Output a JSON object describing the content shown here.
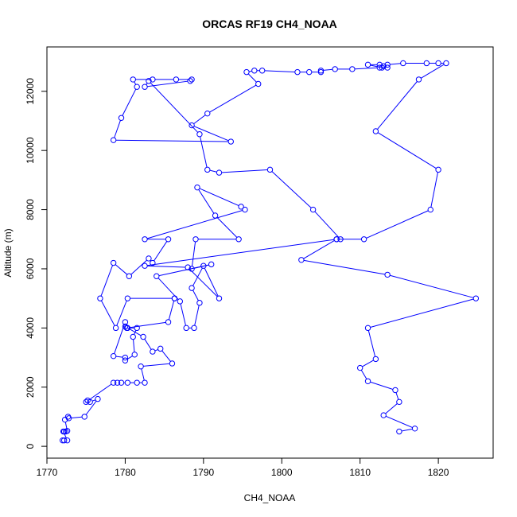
{
  "chart_data": {
    "type": "line",
    "title": "ORCAS RF19 CH4_NOAA",
    "xlabel": "CH4_NOAA",
    "ylabel": "Altitude (m)",
    "xlim": [
      1770,
      1827
    ],
    "ylim": [
      -400,
      13500
    ],
    "xticks": [
      1770,
      1780,
      1790,
      1800,
      1810,
      1820
    ],
    "yticks": [
      0,
      2000,
      4000,
      6000,
      8000,
      10000,
      12000
    ],
    "grid": false,
    "legend": "none",
    "markers": "open-circle",
    "color": "#0000ff",
    "series": [
      {
        "points": [
          [
            1772.0,
            200
          ],
          [
            1772.2,
            200
          ],
          [
            1772.6,
            200
          ],
          [
            1772.1,
            500
          ],
          [
            1772.4,
            500
          ],
          [
            1772.2,
            500
          ],
          [
            1772.6,
            520
          ],
          [
            1772.3,
            900
          ],
          [
            1772.7,
            1000
          ],
          [
            1772.8,
            950
          ],
          [
            1774.8,
            1000
          ],
          [
            1776.5,
            1600
          ],
          [
            1775.5,
            1500
          ],
          [
            1775.2,
            1550
          ],
          [
            1775.0,
            1500
          ],
          [
            1778.5,
            2150
          ],
          [
            1779.0,
            2150
          ],
          [
            1779.5,
            2150
          ],
          [
            1780.3,
            2150
          ],
          [
            1781.5,
            2150
          ],
          [
            1782.5,
            2150
          ],
          [
            1782.0,
            2700
          ],
          [
            1786.0,
            2800
          ],
          [
            1784.5,
            3300
          ],
          [
            1783.5,
            3200
          ],
          [
            1782.3,
            3700
          ],
          [
            1780.0,
            4050
          ],
          [
            1780.3,
            4000
          ],
          [
            1781.5,
            4000
          ],
          [
            1781.0,
            3700
          ],
          [
            1781.2,
            3100
          ],
          [
            1780.0,
            2900
          ],
          [
            1780.0,
            3000
          ],
          [
            1778.5,
            3050
          ],
          [
            1780.0,
            4200
          ],
          [
            1780.2,
            4000
          ],
          [
            1785.5,
            4200
          ],
          [
            1786.3,
            5000
          ],
          [
            1786.3,
            5000
          ],
          [
            1780.3,
            5000
          ],
          [
            1778.8,
            4000
          ],
          [
            1776.8,
            5000
          ],
          [
            1778.5,
            6200
          ],
          [
            1780.5,
            5750
          ],
          [
            1783.0,
            6350
          ],
          [
            1783.5,
            6200
          ],
          [
            1785.5,
            7000
          ],
          [
            1782.5,
            7000
          ],
          [
            1795.3,
            8000
          ],
          [
            1794.8,
            8100
          ],
          [
            1789.2,
            8750
          ],
          [
            1791.5,
            7800
          ],
          [
            1794.5,
            7000
          ],
          [
            1789.0,
            7000
          ],
          [
            1788.5,
            6000
          ],
          [
            1791.0,
            6150
          ],
          [
            1784.0,
            5750
          ],
          [
            1787.0,
            4900
          ],
          [
            1787.8,
            4000
          ],
          [
            1788.8,
            4000
          ],
          [
            1789.5,
            4850
          ],
          [
            1788.5,
            5350
          ],
          [
            1790.0,
            6100
          ],
          [
            1792.0,
            5000
          ],
          [
            1788.0,
            6050
          ],
          [
            1782.5,
            6100
          ],
          [
            1807.0,
            7000
          ],
          [
            1810.5,
            7000
          ],
          [
            1819.0,
            8000
          ],
          [
            1820.0,
            9350
          ],
          [
            1812.0,
            10650
          ],
          [
            1817.5,
            12400
          ],
          [
            1821.0,
            12950
          ],
          [
            1820.0,
            12950
          ],
          [
            1818.5,
            12950
          ],
          [
            1815.5,
            12950
          ],
          [
            1813.5,
            12900
          ],
          [
            1813.0,
            12850
          ],
          [
            1812.5,
            12900
          ],
          [
            1811.0,
            12900
          ],
          [
            1812.8,
            12800
          ],
          [
            1813.5,
            12800
          ],
          [
            1812.5,
            12800
          ],
          [
            1809.0,
            12750
          ],
          [
            1806.8,
            12750
          ],
          [
            1805.0,
            12700
          ],
          [
            1805.0,
            12650
          ],
          [
            1803.5,
            12650
          ],
          [
            1802.0,
            12650
          ],
          [
            1797.5,
            12700
          ],
          [
            1796.5,
            12700
          ],
          [
            1795.5,
            12650
          ],
          [
            1797.0,
            12250
          ],
          [
            1790.5,
            11250
          ],
          [
            1788.5,
            10850
          ],
          [
            1793.5,
            10300
          ],
          [
            1778.5,
            10350
          ],
          [
            1779.5,
            11100
          ],
          [
            1781.5,
            12150
          ],
          [
            1781.0,
            12400
          ],
          [
            1783.5,
            12400
          ],
          [
            1786.5,
            12400
          ],
          [
            1788.5,
            12400
          ],
          [
            1788.3,
            12350
          ],
          [
            1782.5,
            12150
          ],
          [
            1783.0,
            12350
          ],
          [
            1789.5,
            10550
          ],
          [
            1790.5,
            9350
          ],
          [
            1792.0,
            9250
          ],
          [
            1798.5,
            9350
          ],
          [
            1804.0,
            8000
          ],
          [
            1807.5,
            7000
          ]
        ]
      },
      {
        "points": [
          [
            1807.0,
            7000
          ],
          [
            1802.5,
            6300
          ],
          [
            1813.5,
            5800
          ],
          [
            1824.8,
            5000
          ],
          [
            1811.0,
            4000
          ],
          [
            1812.0,
            2950
          ],
          [
            1810.0,
            2650
          ],
          [
            1811.0,
            2200
          ],
          [
            1814.5,
            1900
          ],
          [
            1815.0,
            1500
          ],
          [
            1813.0,
            1050
          ],
          [
            1817.0,
            600
          ],
          [
            1815.0,
            500
          ]
        ]
      }
    ]
  }
}
